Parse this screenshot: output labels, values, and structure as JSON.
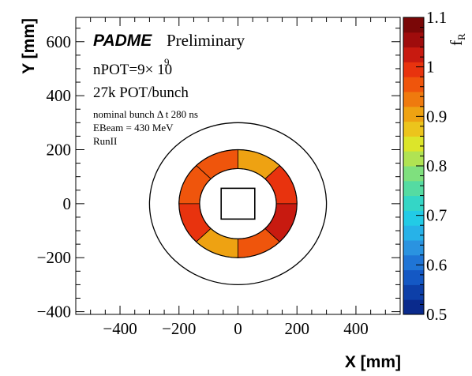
{
  "chart_data": {
    "type": "heatmap",
    "title": "",
    "xlabel": "X [mm]",
    "ylabel": "Y [mm]",
    "zlabel": "f_R",
    "xlim": [
      -550,
      550
    ],
    "ylim": [
      -410,
      690
    ],
    "zlim": [
      0.5,
      1.1
    ],
    "x_ticks": [
      -400,
      -200,
      0,
      200,
      400
    ],
    "y_ticks": [
      -400,
      -200,
      0,
      200,
      400,
      600
    ],
    "z_ticks": [
      0.5,
      0.6,
      0.7,
      0.8,
      0.9,
      1,
      1.1
    ],
    "annotations": {
      "brand": "PADME",
      "status": "Preliminary",
      "npot_base": "nPOT=9× 10",
      "npot_exp": "9",
      "pot_bunch": "27k POT/bunch",
      "bunch_line": "nominal bunch Δ t 280 ns",
      "ebeam": "EBeam = 430 MeV",
      "run": "RunII"
    },
    "outer_circle_radius_mm": 300,
    "central_hole_half_width_mm": 57,
    "ring": {
      "inner_radius_mm": 130,
      "outer_radius_mm": 200,
      "sectors": [
        {
          "name": "right-upper",
          "start_deg": 0,
          "end_deg": 45,
          "value": 1.0
        },
        {
          "name": "upper-right",
          "start_deg": 45,
          "end_deg": 90,
          "value": 0.91
        },
        {
          "name": "upper-left",
          "start_deg": 90,
          "end_deg": 135,
          "value": 0.96
        },
        {
          "name": "left-upper",
          "start_deg": 135,
          "end_deg": 180,
          "value": 0.98
        },
        {
          "name": "left-lower",
          "start_deg": 180,
          "end_deg": 225,
          "value": 0.99
        },
        {
          "name": "lower-left",
          "start_deg": 225,
          "end_deg": 270,
          "value": 0.91
        },
        {
          "name": "lower-right",
          "start_deg": 270,
          "end_deg": 315,
          "value": 0.98
        },
        {
          "name": "right-lower",
          "start_deg": 315,
          "end_deg": 360,
          "value": 1.02
        }
      ]
    },
    "palette": [
      "#0a2a8c",
      "#0d3fa8",
      "#1458c4",
      "#1f75d6",
      "#2a93e0",
      "#27b2e8",
      "#22cbe6",
      "#34d6c6",
      "#55dba2",
      "#7fe07e",
      "#b0e353",
      "#dce52a",
      "#ecc41c",
      "#eea212",
      "#ef7a0e",
      "#ef550c",
      "#e8330e",
      "#c81a10",
      "#9f0c0c",
      "#7a0707"
    ]
  }
}
